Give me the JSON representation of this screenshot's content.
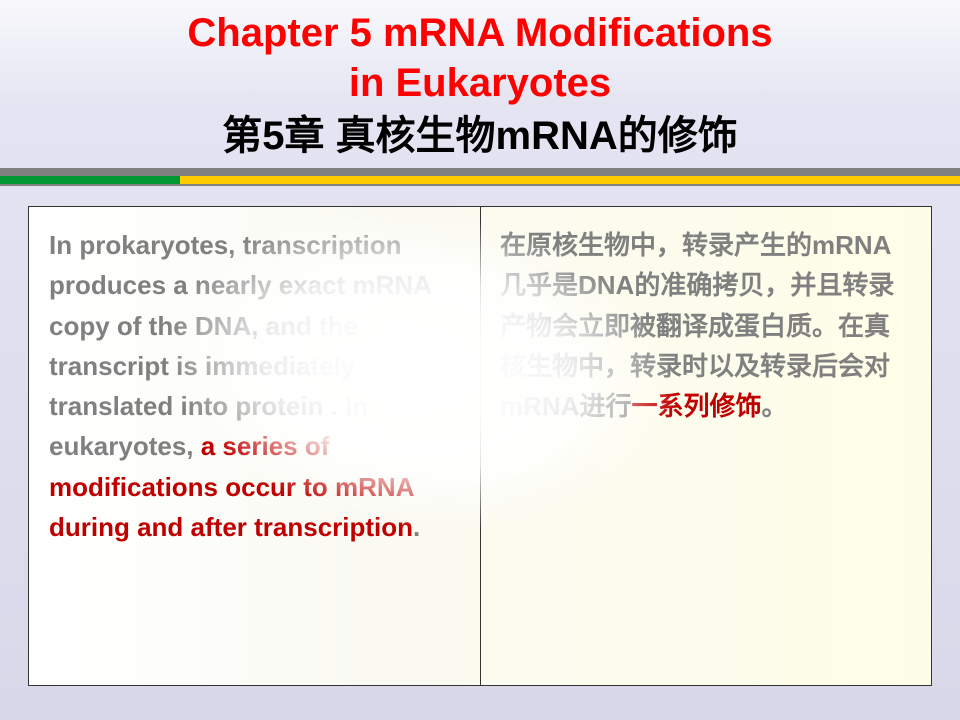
{
  "title": {
    "line1": "Chapter 5  mRNA Modifications",
    "line2": "in Eukaryotes",
    "subtitle": "第5章   真核生物mRNA的修饰"
  },
  "divider": {
    "gray": "#808080",
    "yellow": "#ffcc00",
    "green": "#009933"
  },
  "content": {
    "left": {
      "p1": "In prokaryotes, transcription produces a nearly exact mRNA copy of the DNA, and the transcript is immediately translated into protein . In eukaryotes, ",
      "hl": "a series of modifications occur to mRNA during and after transcription",
      "p2": "."
    },
    "right": {
      "p1": "在原核生物中，转录产生的mRNA几乎是DNA的准确拷贝，并且转录产物会立即被翻译成蛋白质。在真核生物中，转录时以及转录后会对mRNA进行",
      "hl": "一系列修饰",
      "p2": "。"
    }
  },
  "style": {
    "title_color": "#ff0000",
    "subtitle_color": "#000000",
    "body_color": "#808080",
    "highlight_color": "#c00000",
    "title_fontsize": 40,
    "body_fontsize": 26,
    "frame_border": "#333333",
    "background_gradient": [
      "#f8f8fc",
      "#d8d8ea"
    ],
    "frame_background": [
      "#ffffff",
      "#fefee8"
    ]
  }
}
